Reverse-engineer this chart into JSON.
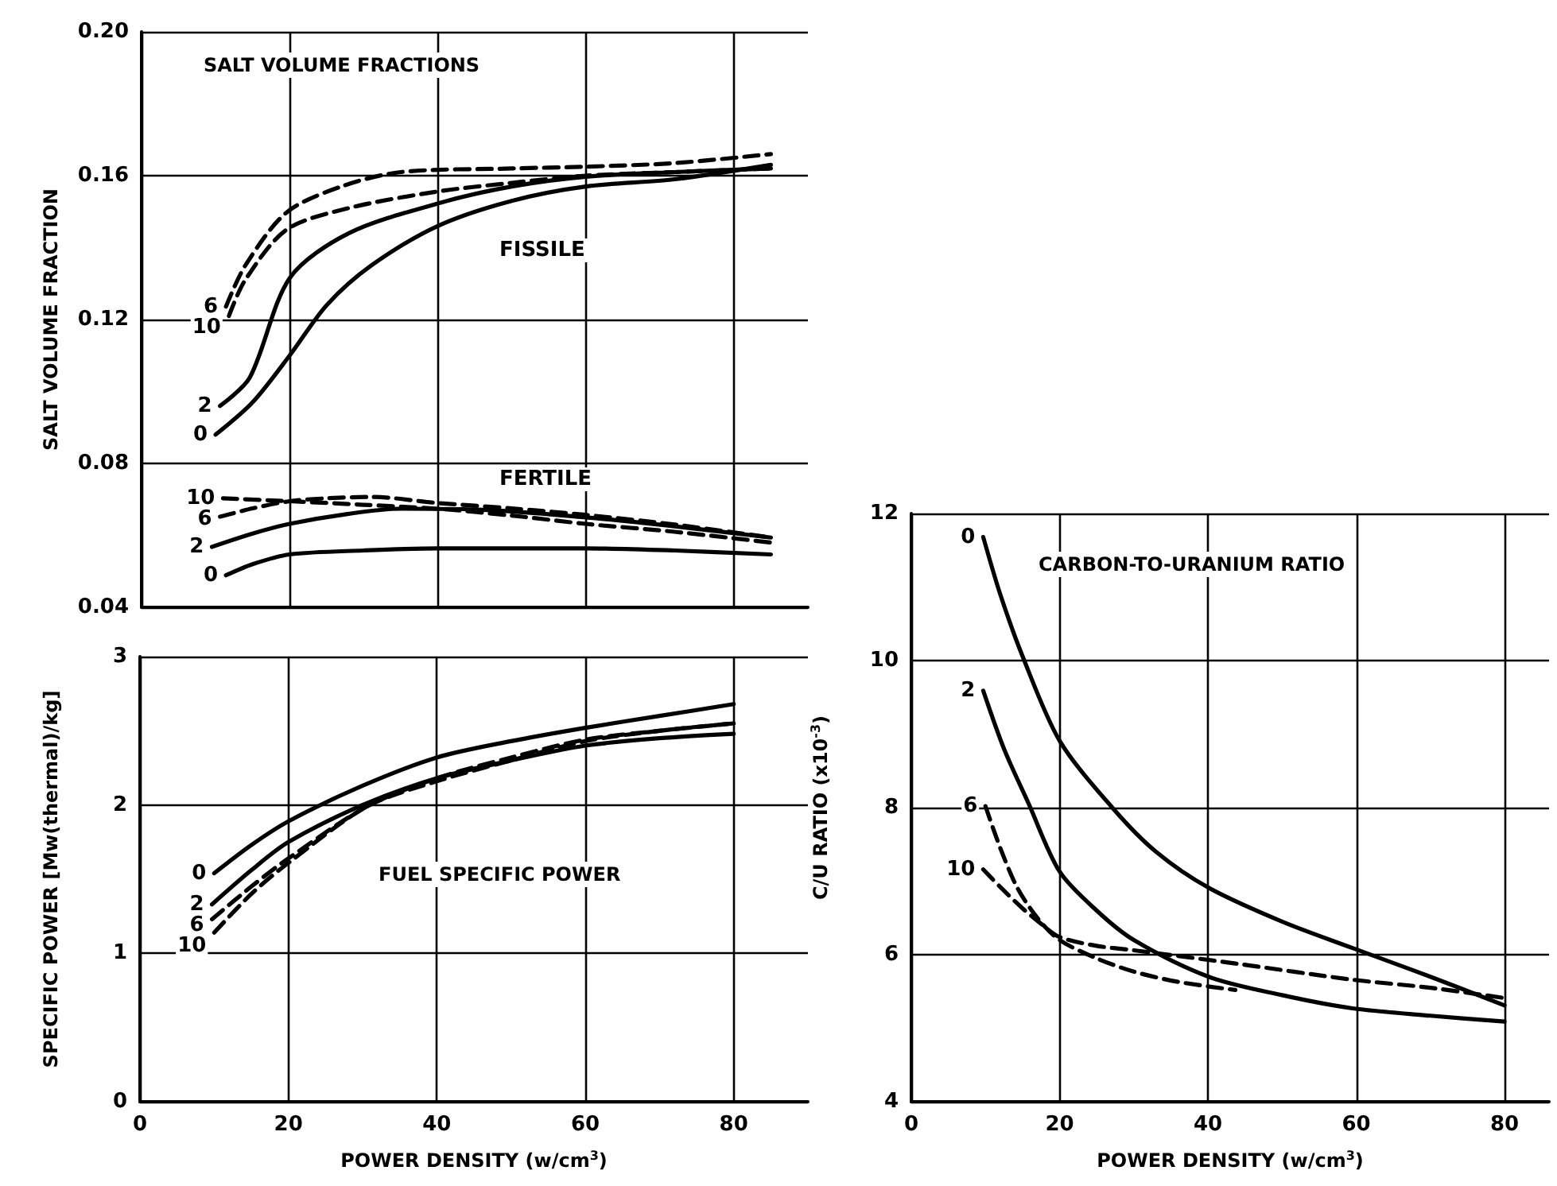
{
  "chart_data": [
    {
      "type": "line",
      "title": "SALT VOLUME FRACTIONS",
      "ylabel": "SALT VOLUME FRACTION",
      "xlim": [
        0,
        90
      ],
      "xticks": [
        0,
        20,
        40,
        60,
        80
      ],
      "ylim": [
        0.04,
        0.2
      ],
      "yticks": [
        {
          "value": 0.04,
          "label": "0.04"
        },
        {
          "value": 0.08,
          "label": "0.08"
        },
        {
          "value": 0.12,
          "label": "0.12"
        },
        {
          "value": 0.16,
          "label": "0.16"
        },
        {
          "value": 0.2,
          "label": "0.20"
        }
      ],
      "grid": true,
      "legend": false,
      "marker": "none",
      "tick_labels": "y",
      "annotations": [
        "FISSILE",
        "FERTILE"
      ],
      "series": [
        {
          "name": "6",
          "color": "#000000",
          "line_style": "dashed",
          "x": [
            11.4,
            14,
            19.6,
            27,
            35,
            50,
            60,
            72,
            85
          ],
          "values": [
            0.1236,
            0.135,
            0.1498,
            0.157,
            0.161,
            0.162,
            0.1625,
            0.1635,
            0.166
          ]
        },
        {
          "name": "10",
          "color": "#000000",
          "line_style": "dashed",
          "x": [
            11.8,
            14,
            19.6,
            28,
            40,
            50,
            60,
            72,
            85
          ],
          "values": [
            0.121,
            0.131,
            0.145,
            0.151,
            0.1556,
            0.158,
            0.16,
            0.161,
            0.162
          ]
        },
        {
          "name": "2",
          "color": "#000000",
          "line_style": "solid",
          "x": [
            10.6,
            14.6,
            20,
            28,
            40.4,
            50,
            60,
            72,
            85
          ],
          "values": [
            0.096,
            0.1038,
            0.1315,
            0.144,
            0.1525,
            0.157,
            0.1597,
            0.161,
            0.162
          ]
        },
        {
          "name": "0",
          "color": "#000000",
          "line_style": "solid",
          "x": [
            10,
            15,
            20,
            25,
            31,
            40,
            50,
            60,
            72,
            85
          ],
          "values": [
            0.088,
            0.097,
            0.11,
            0.124,
            0.135,
            0.146,
            0.153,
            0.157,
            0.159,
            0.163
          ]
        },
        {
          "name": "10",
          "color": "#000000",
          "line_style": "dashed",
          "x": [
            11,
            20,
            30,
            40,
            50,
            60,
            72,
            85
          ],
          "values": [
            0.0703,
            0.0695,
            0.0685,
            0.0674,
            0.0655,
            0.0632,
            0.061,
            0.058
          ]
        },
        {
          "name": "6",
          "color": "#000000",
          "line_style": "dashed",
          "x": [
            10.6,
            15,
            20,
            25,
            31,
            40,
            50,
            60,
            72,
            85
          ],
          "values": [
            0.0652,
            0.0675,
            0.0695,
            0.0703,
            0.0707,
            0.069,
            0.0675,
            0.0657,
            0.063,
            0.0594
          ]
        },
        {
          "name": "2",
          "color": "#000000",
          "line_style": "solid",
          "x": [
            9.5,
            15,
            20,
            28,
            35,
            45,
            60,
            72,
            85
          ],
          "values": [
            0.0568,
            0.0605,
            0.0632,
            0.066,
            0.0674,
            0.0672,
            0.065,
            0.0625,
            0.0594
          ]
        },
        {
          "name": "0",
          "color": "#000000",
          "line_style": "solid",
          "x": [
            11.4,
            15,
            20,
            30,
            40,
            60,
            72,
            85
          ],
          "values": [
            0.0489,
            0.052,
            0.0547,
            0.0558,
            0.0564,
            0.0564,
            0.0558,
            0.0547
          ]
        }
      ]
    },
    {
      "type": "line",
      "title": "FUEL SPECIFIC POWER",
      "xlabel": "POWER DENSITY (w/cm$^{3}$)",
      "ylabel": "SPECIFIC POWER [Mw(thermal)/kg]",
      "xlim": [
        0,
        90
      ],
      "xticks": [
        0,
        20,
        40,
        60,
        80
      ],
      "ylim": [
        0,
        3
      ],
      "yticks": [
        0,
        1,
        2,
        3
      ],
      "grid": true,
      "legend": false,
      "marker": "none",
      "series": [
        {
          "name": "0",
          "color": "#000000",
          "line_style": "solid",
          "x": [
            10,
            15,
            20,
            30,
            40,
            50,
            60,
            70,
            80
          ],
          "values": [
            1.54,
            1.73,
            1.89,
            2.13,
            2.32,
            2.43,
            2.52,
            2.6,
            2.68
          ]
        },
        {
          "name": "2",
          "color": "#000000",
          "line_style": "solid",
          "x": [
            9.7,
            15,
            20,
            30,
            40,
            50,
            60,
            70,
            80
          ],
          "values": [
            1.33,
            1.56,
            1.75,
            2.0,
            2.18,
            2.3,
            2.4,
            2.45,
            2.48
          ]
        },
        {
          "name": "6",
          "color": "#000000",
          "line_style": "dashed",
          "x": [
            9.7,
            15,
            20,
            30.6,
            40,
            50,
            60,
            70,
            80
          ],
          "values": [
            1.23,
            1.45,
            1.64,
            1.99,
            2.18,
            2.32,
            2.44,
            2.5,
            2.55
          ]
        },
        {
          "name": "10",
          "color": "#000000",
          "line_style": "dashed",
          "x": [
            10,
            15,
            20,
            30.6,
            40,
            50,
            60,
            70,
            80
          ],
          "values": [
            1.14,
            1.4,
            1.61,
            1.99,
            2.16,
            2.3,
            2.43,
            2.5,
            2.55
          ]
        }
      ]
    },
    {
      "type": "line",
      "title": "CARBON-TO-URANIUM RATIO",
      "xlabel": "POWER DENSITY (w/cm$^{3}$)",
      "ylabel": "C/U RATIO (x10$^{-3}$)",
      "xlim": [
        0,
        86
      ],
      "xticks": [
        0,
        20,
        40,
        60,
        80
      ],
      "ylim": [
        4,
        12
      ],
      "yticks": [
        4,
        6,
        8,
        10,
        12
      ],
      "grid": true,
      "legend": false,
      "marker": "none",
      "series": [
        {
          "name": "0",
          "color": "#000000",
          "line_style": "solid",
          "x": [
            9.7,
            12,
            15,
            20,
            27.2,
            33,
            40.1,
            50,
            59.5,
            70,
            80
          ],
          "values": [
            11.68,
            10.9,
            10.06,
            8.91,
            7.99,
            7.4,
            6.91,
            6.45,
            6.09,
            5.7,
            5.31
          ]
        },
        {
          "name": "2",
          "color": "#000000",
          "line_style": "solid",
          "x": [
            9.7,
            12.5,
            15.8,
            20,
            25,
            30,
            40.1,
            50,
            59.5,
            70,
            80
          ],
          "values": [
            9.59,
            8.8,
            8.06,
            7.13,
            6.6,
            6.2,
            5.7,
            5.45,
            5.27,
            5.17,
            5.09
          ]
        },
        {
          "name": "6",
          "color": "#000000",
          "line_style": "dashed",
          "x": [
            10,
            12,
            14.3,
            17,
            20,
            25,
            30,
            36,
            43.7
          ],
          "values": [
            8.02,
            7.45,
            6.91,
            6.5,
            6.2,
            5.95,
            5.77,
            5.63,
            5.52
          ]
        },
        {
          "name": "10",
          "color": "#000000",
          "line_style": "dashed",
          "x": [
            9.7,
            12,
            15,
            17.5,
            20,
            25,
            30,
            43.7,
            59.5,
            70,
            80
          ],
          "values": [
            7.16,
            6.92,
            6.63,
            6.42,
            6.24,
            6.12,
            6.06,
            5.88,
            5.66,
            5.55,
            5.41
          ]
        }
      ]
    }
  ]
}
